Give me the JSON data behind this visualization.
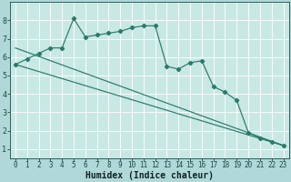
{
  "xlabel": "Humidex (Indice chaleur)",
  "bg_color": "#b0d8d8",
  "plot_bg_color": "#c8e8e4",
  "grid_color": "#ffffff",
  "line_color": "#2a7a6a",
  "xlim": [
    -0.5,
    23.5
  ],
  "ylim": [
    0.5,
    9.0
  ],
  "xticks": [
    0,
    1,
    2,
    3,
    4,
    5,
    6,
    7,
    8,
    9,
    10,
    11,
    12,
    13,
    14,
    15,
    16,
    17,
    18,
    19,
    20,
    21,
    22,
    23
  ],
  "yticks": [
    1,
    2,
    3,
    4,
    5,
    6,
    7,
    8
  ],
  "series1_x": [
    0,
    1,
    2,
    3,
    4,
    5,
    6,
    7,
    8,
    9,
    10,
    11,
    12,
    13,
    14,
    15,
    16,
    17,
    18,
    19,
    20,
    21,
    22,
    23
  ],
  "series1_y": [
    5.6,
    5.9,
    6.2,
    6.5,
    6.5,
    8.1,
    7.1,
    7.2,
    7.3,
    7.4,
    7.6,
    7.7,
    7.7,
    5.5,
    5.35,
    5.7,
    5.8,
    4.4,
    4.1,
    3.65,
    1.9,
    1.6,
    1.4,
    1.2
  ],
  "trend1_x": [
    0,
    23
  ],
  "trend1_y": [
    6.5,
    1.2
  ],
  "trend2_x": [
    0,
    23
  ],
  "trend2_y": [
    5.6,
    1.2
  ],
  "xlabel_bg": "#4a8c88",
  "xlabel_fontsize": 7,
  "tick_fontsize": 5.5,
  "tick_color": "#1a4a44"
}
